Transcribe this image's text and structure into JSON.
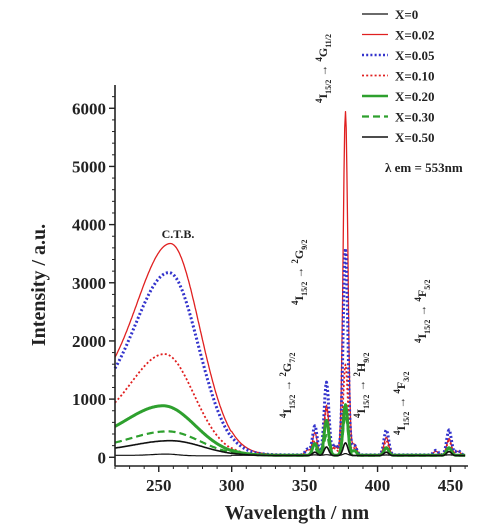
{
  "chart_data": {
    "type": "line",
    "xlabel": "Wavelength / nm",
    "ylabel": "Intensity / a.u.",
    "xlim": [
      220,
      462
    ],
    "ylim": [
      -150,
      6400
    ],
    "xticks": [
      250,
      300,
      350,
      400,
      450
    ],
    "yticks": [
      0,
      1000,
      2000,
      3000,
      4000,
      5000,
      6000
    ],
    "legend_position": "top-right",
    "annotations": {
      "ctb": "C.T.B.",
      "lambda_em": "λ em = 553nm",
      "transitions": [
        {
          "from": "4",
          "from_sub": "I15/2",
          "to": "4",
          "to_sub": "G11/2"
        },
        {
          "from": "4",
          "from_sub": "I15/2",
          "to": "2",
          "to_sub": "G9/2"
        },
        {
          "from": "4",
          "from_sub": "I15/2",
          "to": "2",
          "to_sub": "G7/2"
        },
        {
          "from": "4",
          "from_sub": "I15/2",
          "to": "2",
          "to_sub": "H9/2"
        },
        {
          "from": "4",
          "from_sub": "I15/2",
          "to": "4",
          "to_sub": "F3/2"
        },
        {
          "from": "4",
          "from_sub": "I15/2",
          "to": "4",
          "to_sub": "F5/2"
        }
      ]
    },
    "series": [
      {
        "name": "X=0",
        "color": "#111111",
        "style": "solid",
        "width": 1.2,
        "ctb": [
          220,
          30,
          255,
          8,
          300
        ],
        "peaks": [
          [
            357,
            8
          ],
          [
            365,
            10
          ],
          [
            378,
            30
          ],
          [
            406,
            6
          ],
          [
            449,
            8
          ]
        ]
      },
      {
        "name": "X=0.02",
        "color": "#e02020",
        "style": "solid",
        "width": 1.3,
        "ctb": [
          220,
          3650,
          258,
          20,
          600
        ],
        "peaks": [
          [
            352,
            80
          ],
          [
            357,
            380
          ],
          [
            365,
            850
          ],
          [
            371,
            150
          ],
          [
            378,
            5900
          ],
          [
            384,
            180
          ],
          [
            406,
            300
          ],
          [
            440,
            60
          ],
          [
            449,
            280
          ],
          [
            455,
            60
          ]
        ]
      },
      {
        "name": "X=0.05",
        "color": "#3333cc",
        "style": "dotted",
        "width": 3.0,
        "ctb": [
          220,
          3150,
          257,
          20,
          500
        ],
        "peaks": [
          [
            352,
            100
          ],
          [
            357,
            500
          ],
          [
            365,
            1250
          ],
          [
            371,
            180
          ],
          [
            378,
            3550
          ],
          [
            384,
            170
          ],
          [
            406,
            430
          ],
          [
            440,
            80
          ],
          [
            449,
            430
          ],
          [
            455,
            80
          ]
        ]
      },
      {
        "name": "X=0.10",
        "color": "#e02020",
        "style": "dotted",
        "width": 1.8,
        "ctb": [
          220,
          1750,
          254,
          20,
          350
        ],
        "peaks": [
          [
            357,
            250
          ],
          [
            365,
            800
          ],
          [
            371,
            120
          ],
          [
            378,
            1560
          ],
          [
            384,
            120
          ],
          [
            406,
            250
          ],
          [
            449,
            250
          ]
        ]
      },
      {
        "name": "X=0.20",
        "color": "#2ea02e",
        "style": "solid",
        "width": 3.0,
        "ctb": [
          220,
          860,
          253,
          22,
          300
        ],
        "peaks": [
          [
            357,
            200
          ],
          [
            365,
            600
          ],
          [
            378,
            870
          ],
          [
            384,
            80
          ],
          [
            406,
            130
          ],
          [
            449,
            130
          ]
        ]
      },
      {
        "name": "X=0.30",
        "color": "#2ea02e",
        "style": "dashed",
        "width": 2.2,
        "ctb": [
          220,
          420,
          256,
          22,
          150
        ],
        "peaks": [
          [
            357,
            120
          ],
          [
            365,
            350
          ],
          [
            378,
            700
          ],
          [
            406,
            90
          ],
          [
            449,
            90
          ]
        ]
      },
      {
        "name": "X=0.50",
        "color": "#111111",
        "style": "solid",
        "width": 1.6,
        "ctb": [
          220,
          260,
          258,
          22,
          100
        ],
        "peaks": [
          [
            357,
            60
          ],
          [
            365,
            150
          ],
          [
            378,
            220
          ],
          [
            406,
            60
          ],
          [
            449,
            70
          ]
        ]
      }
    ]
  }
}
